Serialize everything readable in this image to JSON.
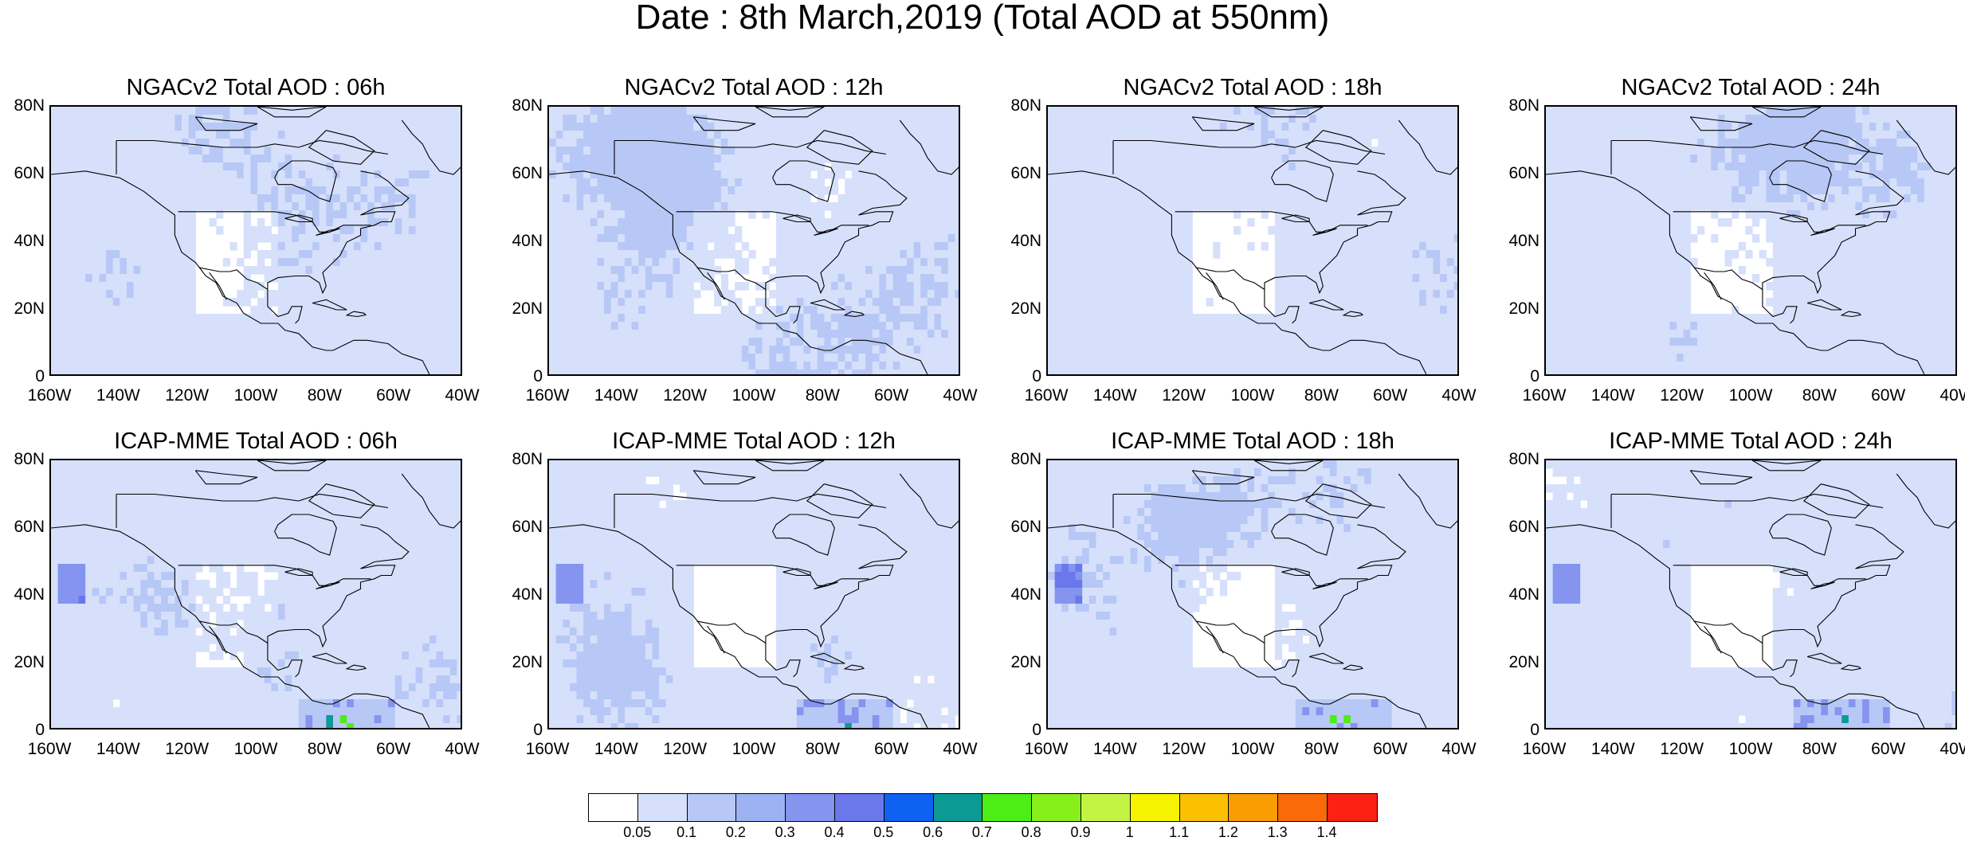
{
  "title": "Date : 8th March,2019 (Total AOD at 550nm)",
  "panels": [
    {
      "title": "NGACv2 Total AOD : 06h",
      "model": "NGACv2",
      "hour": "06h"
    },
    {
      "title": "NGACv2 Total AOD : 12h",
      "model": "NGACv2",
      "hour": "12h"
    },
    {
      "title": "NGACv2 Total AOD : 18h",
      "model": "NGACv2",
      "hour": "18h"
    },
    {
      "title": "NGACv2 Total AOD : 24h",
      "model": "NGACv2",
      "hour": "24h"
    },
    {
      "title": "ICAP-MME Total AOD : 06h",
      "model": "ICAP-MME",
      "hour": "06h"
    },
    {
      "title": "ICAP-MME Total AOD : 12h",
      "model": "ICAP-MME",
      "hour": "12h"
    },
    {
      "title": "ICAP-MME Total AOD : 18h",
      "model": "ICAP-MME",
      "hour": "18h"
    },
    {
      "title": "ICAP-MME Total AOD : 24h",
      "model": "ICAP-MME",
      "hour": "24h"
    }
  ],
  "lat_ticks": [
    "80N",
    "60N",
    "40N",
    "20N",
    "0"
  ],
  "lon_ticks": [
    "160W",
    "140W",
    "120W",
    "100W",
    "80W",
    "60W",
    "40W"
  ],
  "colorbar": {
    "labels": [
      "0.05",
      "0.1",
      "0.2",
      "0.3",
      "0.4",
      "0.5",
      "0.6",
      "0.7",
      "0.8",
      "0.9",
      "1",
      "1.1",
      "1.2",
      "1.3",
      "1.4"
    ],
    "colors": [
      "#ffffff",
      "#d6e0fb",
      "#b7c8f6",
      "#9cb2f3",
      "#8494ef",
      "#6a78eb",
      "#0f61f2",
      "#0b9a94",
      "#4ded16",
      "#87f01a",
      "#c4f443",
      "#f6f300",
      "#fbc002",
      "#fa9d02",
      "#fb6a08",
      "#fb2113"
    ]
  }
}
